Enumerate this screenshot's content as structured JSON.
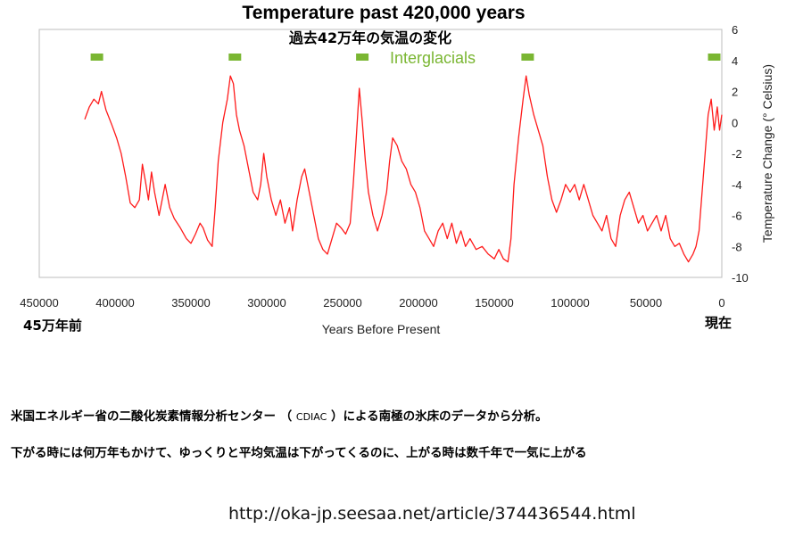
{
  "chart_data": {
    "type": "line",
    "title": "Temperature past 420,000 years",
    "subtitle": "過去42万年の気温の変化",
    "xlabel": "Years Before Present",
    "ylabel": "Temperature Change (° Celsius)",
    "xlim": [
      450000,
      0
    ],
    "ylim": [
      -10,
      6
    ],
    "x_ticks": [
      "450000",
      "400000",
      "350000",
      "300000",
      "250000",
      "200000",
      "150000",
      "100000",
      "50000",
      "0"
    ],
    "y_ticks": [
      "6",
      "4",
      "2",
      "0",
      "-2",
      "-4",
      "-6",
      "-8",
      "-10"
    ],
    "left_axis_note": "45万年前",
    "right_axis_note": "現在",
    "grid": false,
    "annotation": "Interglacials",
    "interglacial_markers_x": [
      412000,
      321000,
      237000,
      128000,
      5000
    ],
    "series": [
      {
        "color": "#ff1a1a",
        "points": [
          [
            420000,
            0.2
          ],
          [
            417000,
            1.0
          ],
          [
            414000,
            1.5
          ],
          [
            411000,
            1.2
          ],
          [
            409000,
            2.0
          ],
          [
            406000,
            0.8
          ],
          [
            402000,
            -0.2
          ],
          [
            399000,
            -1.0
          ],
          [
            396000,
            -2.0
          ],
          [
            393000,
            -3.5
          ],
          [
            390000,
            -5.2
          ],
          [
            387000,
            -5.5
          ],
          [
            384000,
            -5.0
          ],
          [
            382000,
            -2.7
          ],
          [
            380000,
            -3.8
          ],
          [
            378000,
            -5.0
          ],
          [
            376000,
            -3.2
          ],
          [
            374000,
            -4.5
          ],
          [
            371000,
            -6.0
          ],
          [
            369000,
            -5.0
          ],
          [
            367000,
            -4.0
          ],
          [
            364000,
            -5.5
          ],
          [
            361000,
            -6.2
          ],
          [
            357000,
            -6.8
          ],
          [
            353000,
            -7.5
          ],
          [
            350000,
            -7.8
          ],
          [
            347000,
            -7.2
          ],
          [
            344000,
            -6.5
          ],
          [
            342000,
            -6.8
          ],
          [
            339000,
            -7.6
          ],
          [
            336000,
            -8.0
          ],
          [
            334000,
            -5.5
          ],
          [
            332000,
            -2.5
          ],
          [
            329000,
            0.0
          ],
          [
            326000,
            1.5
          ],
          [
            324000,
            3.0
          ],
          [
            322000,
            2.5
          ],
          [
            320000,
            0.5
          ],
          [
            318000,
            -0.5
          ],
          [
            315000,
            -1.5
          ],
          [
            312000,
            -3.0
          ],
          [
            309000,
            -4.5
          ],
          [
            306000,
            -5.0
          ],
          [
            304000,
            -4.0
          ],
          [
            302000,
            -2.0
          ],
          [
            300000,
            -3.5
          ],
          [
            297000,
            -5.0
          ],
          [
            294000,
            -6.0
          ],
          [
            291000,
            -5.0
          ],
          [
            288000,
            -6.5
          ],
          [
            285000,
            -5.5
          ],
          [
            283000,
            -7.0
          ],
          [
            280000,
            -5.0
          ],
          [
            277000,
            -3.5
          ],
          [
            275000,
            -3.0
          ],
          [
            272000,
            -4.5
          ],
          [
            269000,
            -6.0
          ],
          [
            266000,
            -7.5
          ],
          [
            263000,
            -8.2
          ],
          [
            260000,
            -8.5
          ],
          [
            257000,
            -7.5
          ],
          [
            254000,
            -6.5
          ],
          [
            251000,
            -6.8
          ],
          [
            248000,
            -7.2
          ],
          [
            245000,
            -6.5
          ],
          [
            243000,
            -4.0
          ],
          [
            241000,
            -1.0
          ],
          [
            239000,
            2.2
          ],
          [
            237000,
            0.0
          ],
          [
            235000,
            -2.5
          ],
          [
            233000,
            -4.5
          ],
          [
            230000,
            -6.0
          ],
          [
            227000,
            -7.0
          ],
          [
            224000,
            -6.0
          ],
          [
            221000,
            -4.5
          ],
          [
            219000,
            -2.5
          ],
          [
            217000,
            -1.0
          ],
          [
            214000,
            -1.5
          ],
          [
            211000,
            -2.5
          ],
          [
            208000,
            -3.0
          ],
          [
            205000,
            -4.0
          ],
          [
            202000,
            -4.5
          ],
          [
            199000,
            -5.5
          ],
          [
            196000,
            -7.0
          ],
          [
            193000,
            -7.5
          ],
          [
            190000,
            -8.0
          ],
          [
            187000,
            -7.0
          ],
          [
            184000,
            -6.5
          ],
          [
            181000,
            -7.5
          ],
          [
            178000,
            -6.5
          ],
          [
            175000,
            -7.8
          ],
          [
            172000,
            -7.0
          ],
          [
            169000,
            -8.0
          ],
          [
            166000,
            -7.5
          ],
          [
            162000,
            -8.2
          ],
          [
            158000,
            -8.0
          ],
          [
            154000,
            -8.5
          ],
          [
            150000,
            -8.8
          ],
          [
            147000,
            -8.2
          ],
          [
            144000,
            -8.8
          ],
          [
            141000,
            -9.0
          ],
          [
            139000,
            -7.5
          ],
          [
            137000,
            -4.0
          ],
          [
            134000,
            -1.0
          ],
          [
            131000,
            1.5
          ],
          [
            129000,
            3.0
          ],
          [
            127000,
            1.8
          ],
          [
            124000,
            0.5
          ],
          [
            121000,
            -0.5
          ],
          [
            118000,
            -1.5
          ],
          [
            115000,
            -3.5
          ],
          [
            112000,
            -5.0
          ],
          [
            109000,
            -5.8
          ],
          [
            106000,
            -5.0
          ],
          [
            103000,
            -4.0
          ],
          [
            100000,
            -4.5
          ],
          [
            97000,
            -4.0
          ],
          [
            94000,
            -5.0
          ],
          [
            91000,
            -4.0
          ],
          [
            88000,
            -5.0
          ],
          [
            85000,
            -6.0
          ],
          [
            82000,
            -6.5
          ],
          [
            79000,
            -7.0
          ],
          [
            76000,
            -6.0
          ],
          [
            73000,
            -7.5
          ],
          [
            70000,
            -8.0
          ],
          [
            67000,
            -6.0
          ],
          [
            64000,
            -5.0
          ],
          [
            61000,
            -4.5
          ],
          [
            58000,
            -5.5
          ],
          [
            55000,
            -6.5
          ],
          [
            52000,
            -6.0
          ],
          [
            49000,
            -7.0
          ],
          [
            46000,
            -6.5
          ],
          [
            43000,
            -6.0
          ],
          [
            40000,
            -7.0
          ],
          [
            37000,
            -6.0
          ],
          [
            34000,
            -7.5
          ],
          [
            31000,
            -8.0
          ],
          [
            28000,
            -7.8
          ],
          [
            25000,
            -8.5
          ],
          [
            22000,
            -9.0
          ],
          [
            19000,
            -8.5
          ],
          [
            17000,
            -8.0
          ],
          [
            15000,
            -7.0
          ],
          [
            13000,
            -4.5
          ],
          [
            11000,
            -2.0
          ],
          [
            9000,
            0.5
          ],
          [
            7000,
            1.5
          ],
          [
            5000,
            -0.5
          ],
          [
            3000,
            1.0
          ],
          [
            1500,
            -0.5
          ],
          [
            0,
            0.5
          ]
        ]
      }
    ]
  },
  "captions": {
    "line1_before": "米国エネルギー省の二酸化炭素情報分析センター （ ",
    "line1_small": "CDIAC",
    "line1_after": " ）による南極の氷床のデータから分析。",
    "line2": "下がる時には何万年もかけて、ゆっくりと平均気温は下がってくるのに、上がる時は数千年で一気に上がる"
  },
  "source_url": "http://oka-jp.seesaa.net/article/374436544.html"
}
